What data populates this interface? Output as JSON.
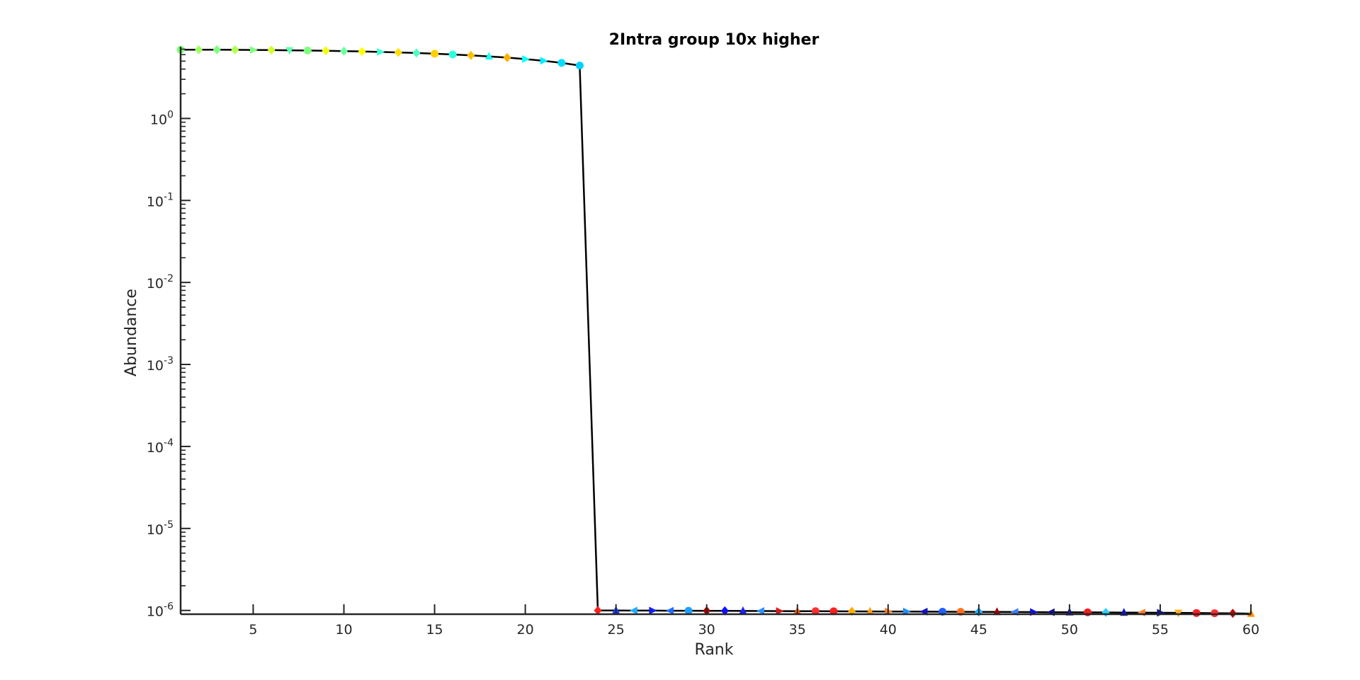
{
  "chart_data": {
    "type": "line",
    "title": "2Intra group 10x higher",
    "xlabel": "Rank",
    "ylabel": "Abundance",
    "xlim": [
      1,
      60
    ],
    "ylim": [
      9e-07,
      7.5
    ],
    "yscale": "log",
    "grid": false,
    "legend": "none",
    "x_ticks": [
      5,
      10,
      15,
      20,
      25,
      30,
      35,
      40,
      45,
      50,
      55,
      60
    ],
    "y_ticks": [
      {
        "value": 1e-06,
        "base": "10",
        "exp": "-6"
      },
      {
        "value": 1e-05,
        "base": "10",
        "exp": "-5"
      },
      {
        "value": 0.0001,
        "base": "10",
        "exp": "-4"
      },
      {
        "value": 0.001,
        "base": "10",
        "exp": "-3"
      },
      {
        "value": 0.01,
        "base": "10",
        "exp": "-2"
      },
      {
        "value": 0.1,
        "base": "10",
        "exp": "-1"
      },
      {
        "value": 1,
        "base": "10",
        "exp": "0"
      }
    ],
    "line_color": "#000000",
    "series": [
      {
        "x": [
          1,
          2,
          3,
          4,
          5,
          6,
          7,
          8,
          9,
          10,
          11,
          12,
          13,
          14,
          15,
          16,
          17,
          18,
          19,
          20,
          21,
          22,
          23,
          24,
          25,
          26,
          27,
          28,
          29,
          30,
          31,
          32,
          33,
          34,
          35,
          36,
          37,
          38,
          39,
          40,
          41,
          42,
          43,
          44,
          45,
          46,
          47,
          48,
          49,
          50,
          51,
          52,
          53,
          54,
          55,
          56,
          57,
          58,
          59,
          60
        ],
        "y": [
          6.9,
          6.9,
          6.89,
          6.87,
          6.85,
          6.82,
          6.78,
          6.74,
          6.69,
          6.63,
          6.56,
          6.48,
          6.39,
          6.28,
          6.16,
          6.03,
          5.88,
          5.71,
          5.52,
          5.3,
          5.05,
          4.76,
          4.42,
          1e-06,
          9.98e-07,
          9.96e-07,
          9.95e-07,
          9.93e-07,
          9.92e-07,
          9.9e-07,
          9.88e-07,
          9.86e-07,
          9.85e-07,
          9.83e-07,
          9.81e-07,
          9.79e-07,
          9.77e-07,
          9.75e-07,
          9.73e-07,
          9.71e-07,
          9.69e-07,
          9.67e-07,
          9.65e-07,
          9.63e-07,
          9.61e-07,
          9.59e-07,
          9.57e-07,
          9.55e-07,
          9.52e-07,
          9.5e-07,
          9.48e-07,
          9.45e-07,
          9.43e-07,
          9.4e-07,
          9.37e-07,
          9.34e-07,
          9.3e-07,
          9.26e-07,
          9.22e-07,
          9.15e-07
        ],
        "marker_colors": [
          "#7fff7f",
          "#9fff5f",
          "#7fff7f",
          "#afff4f",
          "#7fff7f",
          "#cfff2f",
          "#5fffaf",
          "#7fff7f",
          "#efff0f",
          "#6fff9f",
          "#ffff00",
          "#3fffcf",
          "#ffdf00",
          "#4fffbf",
          "#ffcf00",
          "#2fffdf",
          "#ffbf00",
          "#1fffef",
          "#ffaf00",
          "#0fffff",
          "#00efff",
          "#00dfff",
          "#00cfff",
          "#ff1f1f",
          "#0f3fff",
          "#1fafff",
          "#0f1fef",
          "#1f6fff",
          "#1f9fff",
          "#af0000",
          "#0f0fff",
          "#1f1fff",
          "#2f8fff",
          "#cf1f1f",
          "#ff5f0f",
          "#ff2f2f",
          "#ff1f1f",
          "#ffaf00",
          "#ff9f0f",
          "#ff7f1f",
          "#1f8fff",
          "#0f0fbf",
          "#1f5fff",
          "#ff6f1f",
          "#1fafff",
          "#9f0000",
          "#3f7fff",
          "#0f0fdf",
          "#0f0f8f",
          "#0f0faf",
          "#ef1f1f",
          "#2fcfff",
          "#0f0fcf",
          "#ff7f2f",
          "#0f0f9f",
          "#ffaf1f",
          "#ff1f1f",
          "#ff2f2f",
          "#af0f0f",
          "#ff8f00"
        ],
        "marker_shapes": [
          "circle",
          "diamond",
          "diamond",
          "diamond",
          "triangle-right",
          "diamond",
          "triangle-down",
          "circle",
          "diamond",
          "diamond",
          "diamond",
          "triangle-right",
          "diamond",
          "diamond",
          "circle",
          "circle",
          "diamond",
          "triangle-up",
          "diamond",
          "triangle-right",
          "triangle-right",
          "circle",
          "circle",
          "diamond",
          "triangle-up",
          "triangle-left",
          "triangle-right",
          "triangle-left",
          "circle",
          "diamond",
          "diamond",
          "triangle-up",
          "triangle-left",
          "triangle-right",
          "triangle-up",
          "circle",
          "circle",
          "diamond",
          "triangle-up",
          "triangle-right",
          "triangle-right",
          "triangle-left",
          "circle",
          "circle",
          "diamond",
          "triangle-up",
          "triangle-left",
          "triangle-right",
          "triangle-left",
          "triangle-up",
          "circle",
          "diamond",
          "triangle-up",
          "triangle-left",
          "triangle-right",
          "triangle-down",
          "circle",
          "circle",
          "diamond",
          "triangle-up"
        ]
      }
    ]
  }
}
